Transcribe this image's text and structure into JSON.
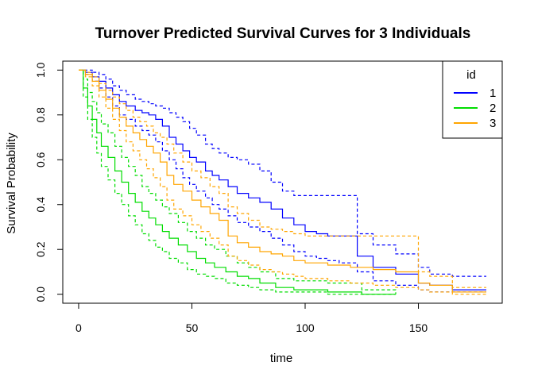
{
  "chart_data": {
    "type": "line",
    "title": "Turnover Predicted Survival Curves for 3 Individuals",
    "xlabel": "time",
    "ylabel": "Survival Probability",
    "xlim": [
      -7,
      187
    ],
    "ylim": [
      -0.04,
      1.04
    ],
    "xticks": [
      0,
      50,
      100,
      150
    ],
    "yticks": [
      0.0,
      0.2,
      0.4,
      0.6,
      0.8,
      1.0
    ],
    "xtick_labels": [
      "0",
      "50",
      "100",
      "150"
    ],
    "ytick_labels": [
      "0.0",
      "0.2",
      "0.4",
      "0.6",
      "0.8",
      "1.0"
    ],
    "grid": false,
    "legend": {
      "title": "id",
      "position": "top-right"
    },
    "series": [
      {
        "name": "1",
        "color": "#0000ff",
        "x": [
          0,
          3,
          6,
          9,
          12,
          15,
          18,
          21,
          25,
          28,
          31,
          34,
          37,
          40,
          43,
          46,
          49,
          52,
          56,
          59,
          62,
          66,
          70,
          75,
          80,
          85,
          90,
          95,
          100,
          105,
          110,
          115,
          123,
          130,
          140,
          150,
          155,
          165,
          180
        ],
        "y": [
          1.0,
          0.99,
          0.97,
          0.95,
          0.92,
          0.89,
          0.86,
          0.84,
          0.82,
          0.81,
          0.8,
          0.78,
          0.75,
          0.7,
          0.67,
          0.64,
          0.61,
          0.59,
          0.55,
          0.53,
          0.51,
          0.48,
          0.45,
          0.43,
          0.41,
          0.38,
          0.34,
          0.31,
          0.28,
          0.27,
          0.26,
          0.26,
          0.17,
          0.12,
          0.09,
          0.05,
          0.04,
          0.02,
          0.02
        ],
        "lower": [
          1.0,
          0.98,
          0.95,
          0.92,
          0.88,
          0.84,
          0.8,
          0.78,
          0.75,
          0.73,
          0.71,
          0.68,
          0.64,
          0.6,
          0.56,
          0.52,
          0.49,
          0.46,
          0.43,
          0.4,
          0.38,
          0.35,
          0.32,
          0.3,
          0.28,
          0.25,
          0.22,
          0.19,
          0.17,
          0.16,
          0.15,
          0.14,
          0.1,
          0.06,
          0.04,
          0.02,
          0.01,
          0.01,
          0.01
        ],
        "upper": [
          1.0,
          1.0,
          0.99,
          0.98,
          0.96,
          0.93,
          0.91,
          0.89,
          0.87,
          0.86,
          0.85,
          0.84,
          0.83,
          0.81,
          0.79,
          0.77,
          0.74,
          0.71,
          0.67,
          0.65,
          0.63,
          0.61,
          0.6,
          0.58,
          0.55,
          0.5,
          0.46,
          0.44,
          0.44,
          0.44,
          0.44,
          0.44,
          0.27,
          0.22,
          0.18,
          0.12,
          0.09,
          0.08,
          0.08
        ]
      },
      {
        "name": "2",
        "color": "#00dd00",
        "x": [
          0,
          2,
          4,
          6,
          8,
          10,
          13,
          16,
          19,
          22,
          25,
          28,
          31,
          34,
          37,
          40,
          44,
          48,
          52,
          56,
          60,
          65,
          70,
          75,
          80,
          87,
          95,
          110,
          125,
          140
        ],
        "y": [
          1.0,
          0.92,
          0.84,
          0.78,
          0.72,
          0.66,
          0.61,
          0.55,
          0.5,
          0.45,
          0.41,
          0.37,
          0.34,
          0.31,
          0.28,
          0.25,
          0.22,
          0.19,
          0.16,
          0.14,
          0.12,
          0.1,
          0.08,
          0.07,
          0.05,
          0.03,
          0.02,
          0.01,
          0.0,
          0.0
        ],
        "lower": [
          1.0,
          0.88,
          0.78,
          0.7,
          0.63,
          0.57,
          0.51,
          0.45,
          0.4,
          0.35,
          0.31,
          0.27,
          0.24,
          0.21,
          0.19,
          0.16,
          0.14,
          0.11,
          0.09,
          0.08,
          0.07,
          0.05,
          0.04,
          0.03,
          0.02,
          0.01,
          0.01,
          0.0,
          0.0,
          0.0
        ],
        "upper": [
          1.0,
          0.96,
          0.9,
          0.86,
          0.81,
          0.76,
          0.72,
          0.66,
          0.61,
          0.57,
          0.53,
          0.48,
          0.45,
          0.42,
          0.39,
          0.36,
          0.32,
          0.28,
          0.25,
          0.22,
          0.2,
          0.17,
          0.14,
          0.12,
          0.1,
          0.07,
          0.06,
          0.05,
          0.02,
          0.0
        ]
      },
      {
        "name": "3",
        "color": "#ffa500",
        "x": [
          0,
          3,
          6,
          9,
          12,
          15,
          18,
          21,
          24,
          27,
          30,
          33,
          36,
          39,
          42,
          46,
          50,
          54,
          58,
          62,
          66,
          70,
          75,
          80,
          85,
          90,
          95,
          100,
          110,
          120,
          130,
          140,
          150,
          155,
          165,
          180
        ],
        "y": [
          1.0,
          0.98,
          0.95,
          0.91,
          0.87,
          0.83,
          0.79,
          0.75,
          0.72,
          0.69,
          0.66,
          0.63,
          0.59,
          0.53,
          0.49,
          0.46,
          0.42,
          0.39,
          0.36,
          0.33,
          0.26,
          0.23,
          0.21,
          0.19,
          0.18,
          0.17,
          0.15,
          0.14,
          0.13,
          0.12,
          0.11,
          0.1,
          0.05,
          0.04,
          0.01,
          0.01
        ],
        "lower": [
          1.0,
          0.97,
          0.93,
          0.88,
          0.83,
          0.78,
          0.73,
          0.68,
          0.64,
          0.6,
          0.56,
          0.52,
          0.48,
          0.42,
          0.38,
          0.35,
          0.31,
          0.28,
          0.25,
          0.22,
          0.17,
          0.15,
          0.13,
          0.11,
          0.1,
          0.09,
          0.08,
          0.07,
          0.06,
          0.05,
          0.04,
          0.03,
          0.02,
          0.01,
          0.0,
          0.0
        ],
        "upper": [
          1.0,
          0.99,
          0.97,
          0.94,
          0.91,
          0.88,
          0.85,
          0.82,
          0.79,
          0.77,
          0.75,
          0.72,
          0.7,
          0.67,
          0.63,
          0.59,
          0.55,
          0.52,
          0.48,
          0.45,
          0.39,
          0.36,
          0.33,
          0.3,
          0.29,
          0.28,
          0.27,
          0.26,
          0.26,
          0.26,
          0.26,
          0.26,
          0.1,
          0.08,
          0.03,
          0.03
        ]
      }
    ]
  }
}
